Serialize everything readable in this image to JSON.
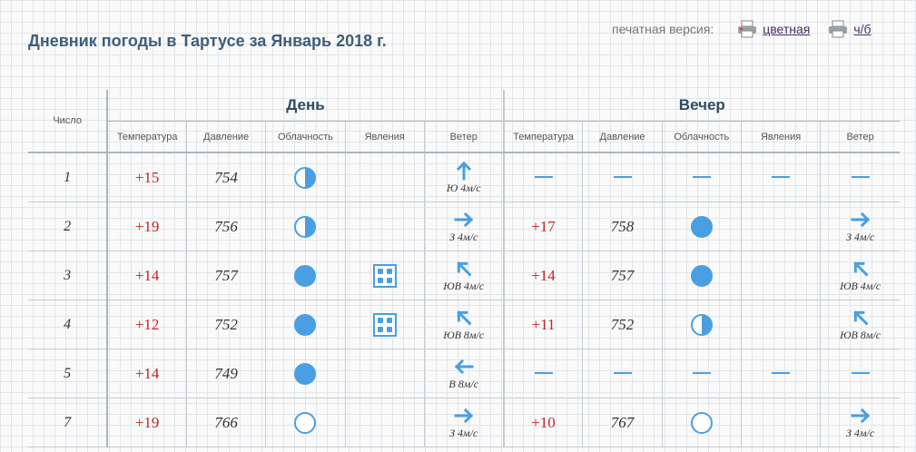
{
  "page": {
    "title": "Дневник погоды в Тартусе за Январь 2018 г.",
    "print_label": "печатная версия:",
    "print_color": "цветная",
    "print_bw": "ч/б"
  },
  "headers": {
    "chislo": "Число",
    "day": "День",
    "evening": "Вечер",
    "temperature": "Температура",
    "pressure": "Давление",
    "cloudiness": "Облачность",
    "phenomena": "Явления",
    "wind": "Ветер"
  },
  "rows": [
    {
      "n": "1",
      "day": {
        "t": "+15",
        "p": "754",
        "cloud": "half",
        "phen": "",
        "wind_dir": "N",
        "wind_txt": "Ю 4м/с"
      },
      "eve": null
    },
    {
      "n": "2",
      "day": {
        "t": "+19",
        "p": "756",
        "cloud": "half",
        "phen": "",
        "wind_dir": "E",
        "wind_txt": "З 4м/с"
      },
      "eve": {
        "t": "+17",
        "p": "758",
        "cloud": "full",
        "phen": "",
        "wind_dir": "E",
        "wind_txt": "З 4м/с"
      }
    },
    {
      "n": "3",
      "day": {
        "t": "+14",
        "p": "757",
        "cloud": "full",
        "phen": "snow",
        "wind_dir": "NW",
        "wind_txt": "ЮВ 4м/с"
      },
      "eve": {
        "t": "+14",
        "p": "757",
        "cloud": "full",
        "phen": "",
        "wind_dir": "NW",
        "wind_txt": "ЮВ 4м/с"
      }
    },
    {
      "n": "4",
      "day": {
        "t": "+12",
        "p": "752",
        "cloud": "full",
        "phen": "snow",
        "wind_dir": "NW",
        "wind_txt": "ЮВ 8м/с"
      },
      "eve": {
        "t": "+11",
        "p": "752",
        "cloud": "half",
        "phen": "",
        "wind_dir": "NW",
        "wind_txt": "ЮВ 8м/с"
      }
    },
    {
      "n": "5",
      "day": {
        "t": "+14",
        "p": "749",
        "cloud": "full",
        "phen": "",
        "wind_dir": "W",
        "wind_txt": "В 8м/с"
      },
      "eve": null
    },
    {
      "n": "7",
      "day": {
        "t": "+19",
        "p": "766",
        "cloud": "empty",
        "phen": "",
        "wind_dir": "E",
        "wind_txt": "З 4м/с"
      },
      "eve": {
        "t": "+10",
        "p": "767",
        "cloud": "empty",
        "phen": "",
        "wind_dir": "E",
        "wind_txt": "З 4м/с"
      }
    }
  ],
  "colors": {
    "accent": "#4a9fe2",
    "temp": "#c0262d",
    "title": "#3d5f7e"
  },
  "icons": {
    "printer": "printer-icon",
    "cloud": "cloudiness-icon",
    "phenomena": "snow-icon",
    "wind": "wind-arrow-icon",
    "no_data": "dash"
  }
}
